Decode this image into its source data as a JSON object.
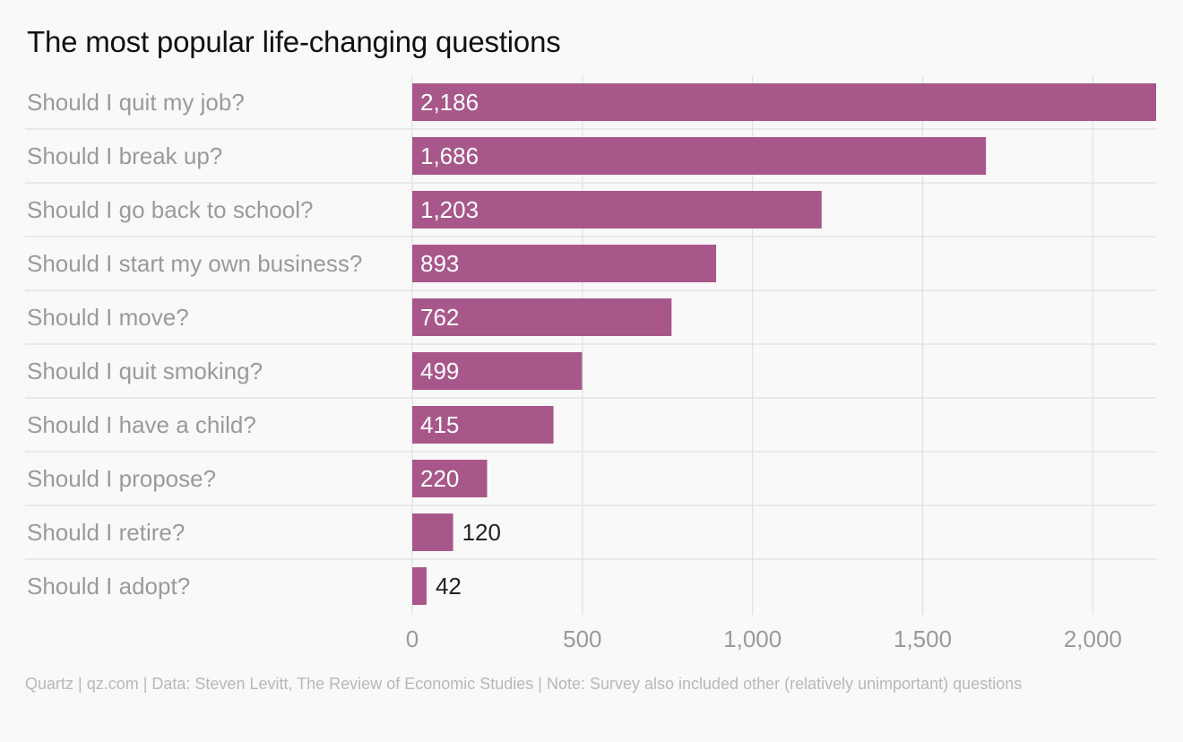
{
  "chart_data": {
    "type": "bar",
    "orientation": "horizontal",
    "title": "The most popular life-changing questions",
    "categories": [
      "Should I quit my job?",
      "Should I break up?",
      "Should I go back to school?",
      "Should I start my own business?",
      "Should I move?",
      "Should I quit smoking?",
      "Should I have a child?",
      "Should I propose?",
      "Should I retire?",
      "Should I adopt?"
    ],
    "values": [
      2186,
      1686,
      1203,
      893,
      762,
      499,
      415,
      220,
      120,
      42
    ],
    "value_labels": [
      "2,186",
      "1,686",
      "1,203",
      "893",
      "762",
      "499",
      "415",
      "220",
      "120",
      "42"
    ],
    "xlim": [
      0,
      2186
    ],
    "x_ticks": [
      0,
      500,
      1000,
      1500,
      2000
    ],
    "x_tick_labels": [
      "0",
      "500",
      "1,000",
      "1,500",
      "2,000"
    ],
    "grid": true,
    "bar_color": "#a8578a",
    "label_color_inside": "#ffffff",
    "label_color_outside": "#222222",
    "category_label_color": "#9a9a9a",
    "tick_label_color": "#9a9a9a",
    "grid_color": "#e4e4e4"
  },
  "footer": {
    "source_note": "Quartz | qz.com | Data: Steven Levitt, The Review of Economic Studies | Note: Survey also included other (relatively unimportant) questions"
  }
}
